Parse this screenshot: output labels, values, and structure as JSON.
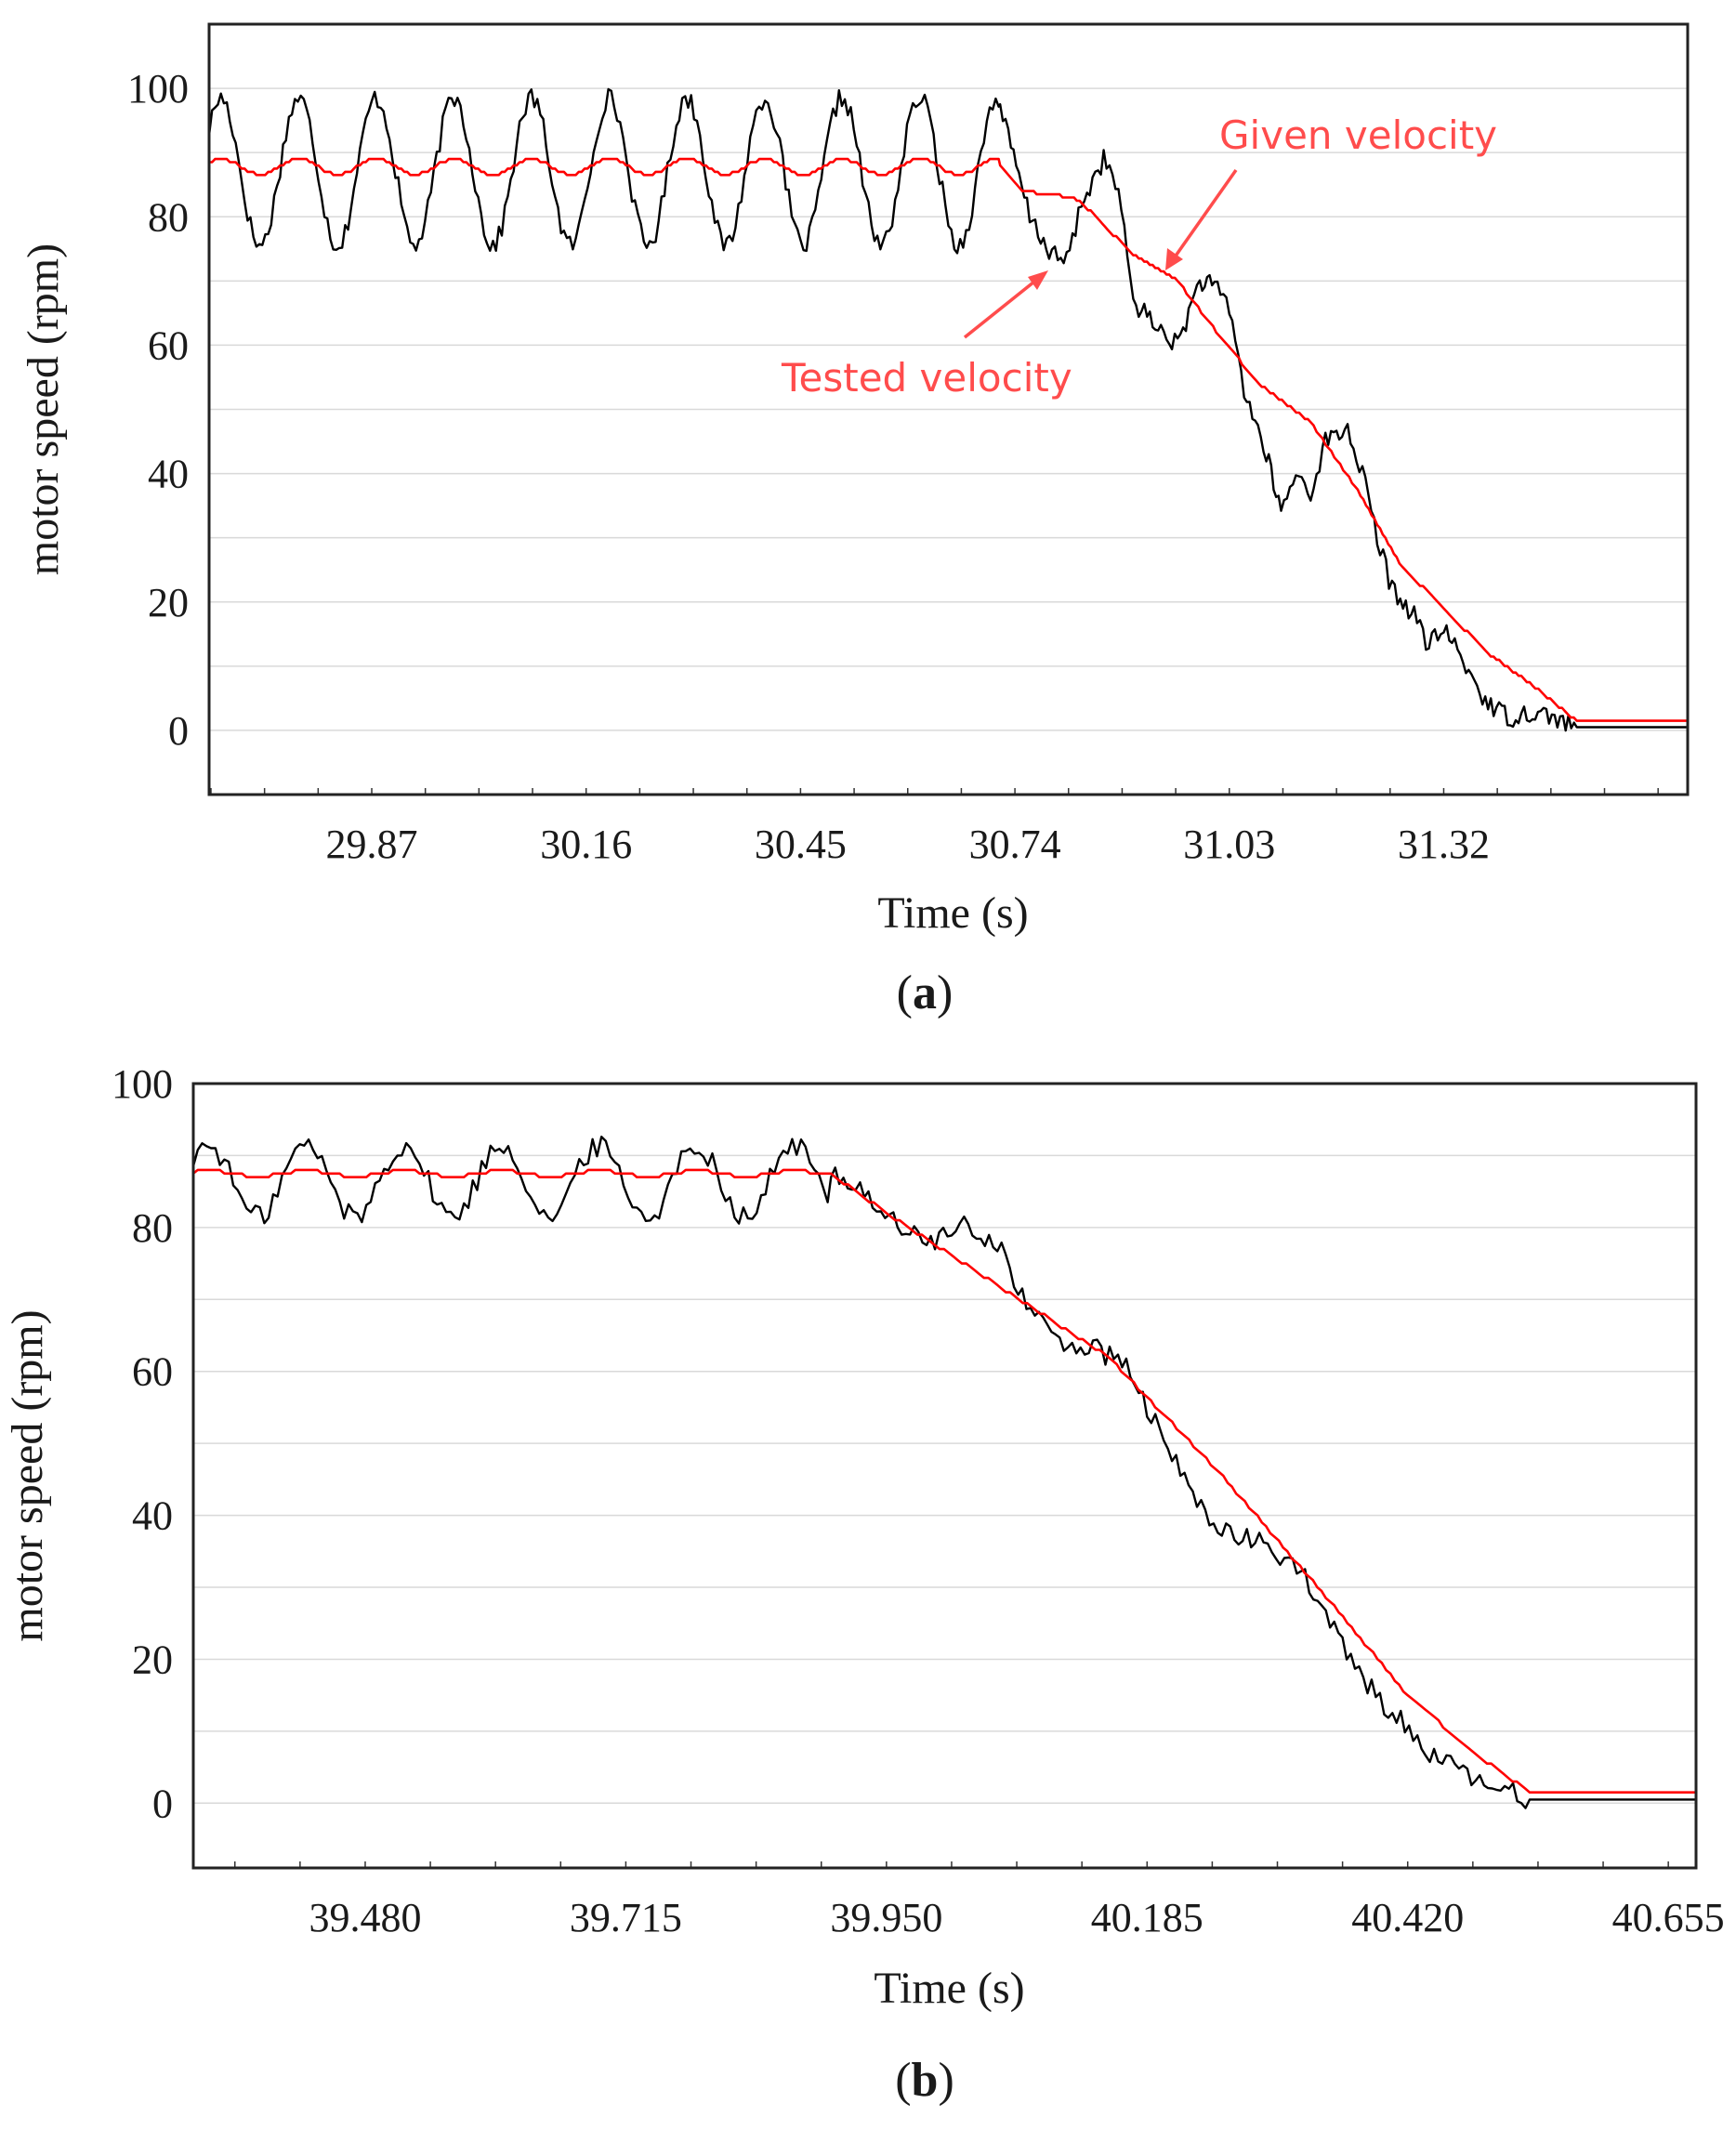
{
  "chart_data": [
    {
      "type": "line",
      "panel_label_open": "(",
      "panel_label_letter": "a",
      "panel_label_close": ")",
      "xlabel": "Time (s)",
      "ylabel": "motor speed (rpm)",
      "xlim": [
        29.65,
        31.65
      ],
      "ylim": [
        -10,
        110
      ],
      "xticks": [
        "29.87",
        "30.16",
        "30.45",
        "30.74",
        "31.03",
        "31.32"
      ],
      "yticks": [
        "100",
        "80",
        "60",
        "40",
        "20",
        "0"
      ],
      "grid": true,
      "series": [
        {
          "name": "Tested velocity",
          "color": "#000000",
          "oscillation": {
            "start": 29.65,
            "end": 30.72,
            "center": 87,
            "amplitude": 11.5,
            "period": 0.105
          },
          "points": [
            [
              30.72,
              97
            ],
            [
              30.76,
              80
            ],
            [
              30.79,
              74
            ],
            [
              30.81,
              73
            ],
            [
              30.83,
              82
            ],
            [
              30.86,
              89
            ],
            [
              30.88,
              84
            ],
            [
              30.9,
              67
            ],
            [
              30.93,
              63
            ],
            [
              30.96,
              60
            ],
            [
              30.99,
              70
            ],
            [
              31.01,
              69
            ],
            [
              31.03,
              66
            ],
            [
              31.05,
              53
            ],
            [
              31.08,
              43
            ],
            [
              31.1,
              34
            ],
            [
              31.12,
              40
            ],
            [
              31.14,
              37
            ],
            [
              31.16,
              45
            ],
            [
              31.19,
              47
            ],
            [
              31.21,
              40
            ],
            [
              31.23,
              30
            ],
            [
              31.25,
              22
            ],
            [
              31.28,
              18
            ],
            [
              31.3,
              13
            ],
            [
              31.32,
              16
            ],
            [
              31.35,
              10
            ],
            [
              31.38,
              4
            ],
            [
              31.41,
              2
            ],
            [
              31.44,
              3
            ],
            [
              31.47,
              2
            ],
            [
              31.5,
              0.5
            ],
            [
              31.65,
              0.5
            ]
          ]
        },
        {
          "name": "Given velocity",
          "color": "#ff0000",
          "oscillation": {
            "start": 29.65,
            "end": 30.72,
            "center": 87.8,
            "amplitude": 1.2,
            "period": 0.105
          },
          "points": [
            [
              30.72,
              88
            ],
            [
              30.75,
              84
            ],
            [
              30.82,
              83
            ],
            [
              30.85,
              80
            ],
            [
              30.9,
              74
            ],
            [
              30.96,
              70
            ],
            [
              31.02,
              61
            ],
            [
              31.07,
              54
            ],
            [
              31.14,
              48
            ],
            [
              31.2,
              38
            ],
            [
              31.26,
              26
            ],
            [
              31.32,
              19
            ],
            [
              31.38,
              12
            ],
            [
              31.44,
              7
            ],
            [
              31.5,
              1.5
            ],
            [
              31.65,
              1.5
            ]
          ]
        }
      ],
      "annotations": [
        {
          "text": "Given velocity",
          "series": "Given velocity"
        },
        {
          "text": "Tested velocity",
          "series": "Tested velocity"
        }
      ]
    },
    {
      "type": "line",
      "panel_label_open": "(",
      "panel_label_letter": "b",
      "panel_label_close": ")",
      "xlabel": "Time (s)",
      "ylabel": "motor speed (rpm)",
      "xlim": [
        39.325,
        40.68
      ],
      "ylim": [
        -9,
        100
      ],
      "xticks": [
        "39.480",
        "39.715",
        "39.950",
        "40.185",
        "40.420",
        "40.655"
      ],
      "yticks": [
        "100",
        "80",
        "60",
        "40",
        "20",
        "0"
      ],
      "grid": true,
      "series": [
        {
          "name": "Tested velocity",
          "color": "#000000",
          "oscillation": {
            "start": 39.325,
            "end": 39.9,
            "center": 86.5,
            "amplitude": 5,
            "period": 0.088
          },
          "points": [
            [
              39.9,
              88
            ],
            [
              39.93,
              85
            ],
            [
              39.96,
              80
            ],
            [
              39.99,
              78
            ],
            [
              40.02,
              80
            ],
            [
              40.05,
              78
            ],
            [
              40.08,
              68
            ],
            [
              40.11,
              64
            ],
            [
              40.14,
              63
            ],
            [
              40.17,
              60
            ],
            [
              40.2,
              50
            ],
            [
              40.23,
              42
            ],
            [
              40.26,
              37
            ],
            [
              40.29,
              36
            ],
            [
              40.32,
              33
            ],
            [
              40.35,
              25
            ],
            [
              40.38,
              17
            ],
            [
              40.41,
              12
            ],
            [
              40.44,
              7
            ],
            [
              40.47,
              4
            ],
            [
              40.5,
              2
            ],
            [
              40.53,
              0.5
            ],
            [
              40.68,
              0.5
            ]
          ]
        },
        {
          "name": "Given velocity",
          "color": "#ff0000",
          "oscillation": {
            "start": 39.325,
            "end": 39.9,
            "center": 87.5,
            "amplitude": 0.4,
            "period": 0.088
          },
          "points": [
            [
              39.9,
              87.5
            ],
            [
              39.95,
              82
            ],
            [
              40.05,
              72
            ],
            [
              40.15,
              62
            ],
            [
              40.25,
              46
            ],
            [
              40.35,
              28
            ],
            [
              40.42,
              15
            ],
            [
              40.48,
              7
            ],
            [
              40.53,
              1.5
            ],
            [
              40.68,
              1.5
            ]
          ]
        }
      ]
    }
  ]
}
